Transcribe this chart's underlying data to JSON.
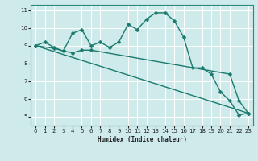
{
  "title": "",
  "xlabel": "Humidex (Indice chaleur)",
  "xlim": [
    -0.5,
    23.5
  ],
  "ylim": [
    4.5,
    11.3
  ],
  "yticks": [
    5,
    6,
    7,
    8,
    9,
    10,
    11
  ],
  "xticks": [
    0,
    1,
    2,
    3,
    4,
    5,
    6,
    7,
    8,
    9,
    10,
    11,
    12,
    13,
    14,
    15,
    16,
    17,
    18,
    19,
    20,
    21,
    22,
    23
  ],
  "bg_color": "#ceeaea",
  "grid_color": "#ffffff",
  "line_color": "#1a7a6e",
  "line_width": 1.0,
  "marker_size": 2.5,
  "series0_x": [
    0,
    1,
    2,
    3,
    4,
    5,
    6,
    7,
    8,
    9,
    10,
    11,
    12,
    13,
    14,
    15,
    16,
    17,
    18,
    19,
    20,
    21,
    22,
    23
  ],
  "series0_y": [
    9.0,
    9.2,
    8.9,
    8.7,
    9.7,
    9.9,
    9.0,
    9.2,
    8.9,
    9.2,
    10.2,
    9.9,
    10.5,
    10.85,
    10.85,
    10.4,
    9.5,
    7.75,
    7.75,
    7.4,
    6.4,
    5.9,
    5.1,
    5.2
  ],
  "series1_x": [
    0,
    2,
    3,
    4,
    5,
    6,
    21,
    22,
    23
  ],
  "series1_y": [
    9.0,
    8.85,
    8.7,
    8.6,
    8.75,
    8.75,
    7.4,
    5.9,
    5.2
  ],
  "series2_x": [
    0,
    23
  ],
  "series2_y": [
    9.0,
    5.2
  ]
}
